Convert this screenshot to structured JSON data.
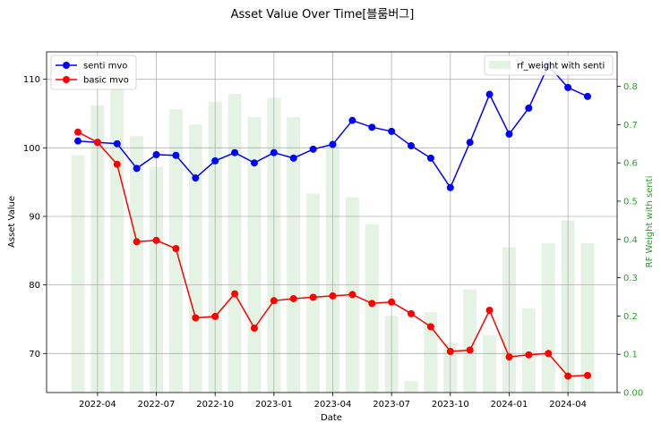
{
  "chart_data": {
    "type": "line",
    "title": "Asset Value Over Time[블룸버그]",
    "xlabel": "Date",
    "ylabel": "Asset Value",
    "y2label": "RF Weight with senti",
    "x": [
      "2022-03",
      "2022-04",
      "2022-05",
      "2022-06",
      "2022-07",
      "2022-08",
      "2022-09",
      "2022-10",
      "2022-11",
      "2022-12",
      "2023-01",
      "2023-02",
      "2023-03",
      "2023-04",
      "2023-05",
      "2023-06",
      "2023-07",
      "2023-08",
      "2023-09",
      "2023-10",
      "2023-11",
      "2023-12",
      "2024-01",
      "2024-02",
      "2024-03",
      "2024-04",
      "2024-05"
    ],
    "xticks": [
      "2022-04",
      "2022-07",
      "2022-10",
      "2023-01",
      "2023-04",
      "2023-07",
      "2023-10",
      "2024-01",
      "2024-04"
    ],
    "yticks": [
      70,
      80,
      90,
      100,
      110
    ],
    "y2ticks": [
      "0.00",
      "0.1",
      "0.2",
      "0.3",
      "0.4",
      "0.5",
      "0.6",
      "0.7",
      "0.8"
    ],
    "ylim": [
      64.3,
      114
    ],
    "y2lim": [
      0,
      0.89
    ],
    "grid": true,
    "series": [
      {
        "name": "senti mvo",
        "color": "#0000ff",
        "axis": "left",
        "values": [
          101.0,
          100.8,
          100.6,
          97.0,
          99.0,
          98.9,
          95.6,
          98.1,
          99.3,
          97.8,
          99.3,
          98.5,
          99.8,
          100.5,
          104.0,
          103.0,
          102.4,
          100.3,
          98.5,
          94.2,
          100.8,
          107.8,
          102.0,
          105.8,
          112.0,
          108.8,
          107.5
        ]
      },
      {
        "name": "basic mvo",
        "color": "#ff0000",
        "axis": "left",
        "values": [
          102.3,
          100.8,
          97.6,
          86.3,
          86.5,
          85.3,
          75.2,
          75.4,
          78.7,
          73.7,
          77.7,
          78.0,
          78.2,
          78.4,
          78.6,
          77.3,
          77.5,
          75.8,
          73.9,
          70.3,
          70.5,
          76.3,
          69.5,
          69.8,
          70.0,
          66.7,
          66.8
        ]
      },
      {
        "name": "rf_weight with senti",
        "color": "#2ca02c",
        "axis": "right",
        "kind": "bar",
        "values": [
          0.62,
          0.75,
          0.85,
          0.67,
          0.59,
          0.74,
          0.7,
          0.76,
          0.78,
          0.72,
          0.77,
          0.72,
          0.52,
          0.65,
          0.51,
          0.44,
          0.2,
          0.03,
          0.21,
          0.13,
          0.27,
          0.15,
          0.38,
          0.22,
          0.39,
          0.45,
          0.39
        ]
      }
    ],
    "legend_left": "upper-left",
    "legend_right": "upper-right"
  }
}
